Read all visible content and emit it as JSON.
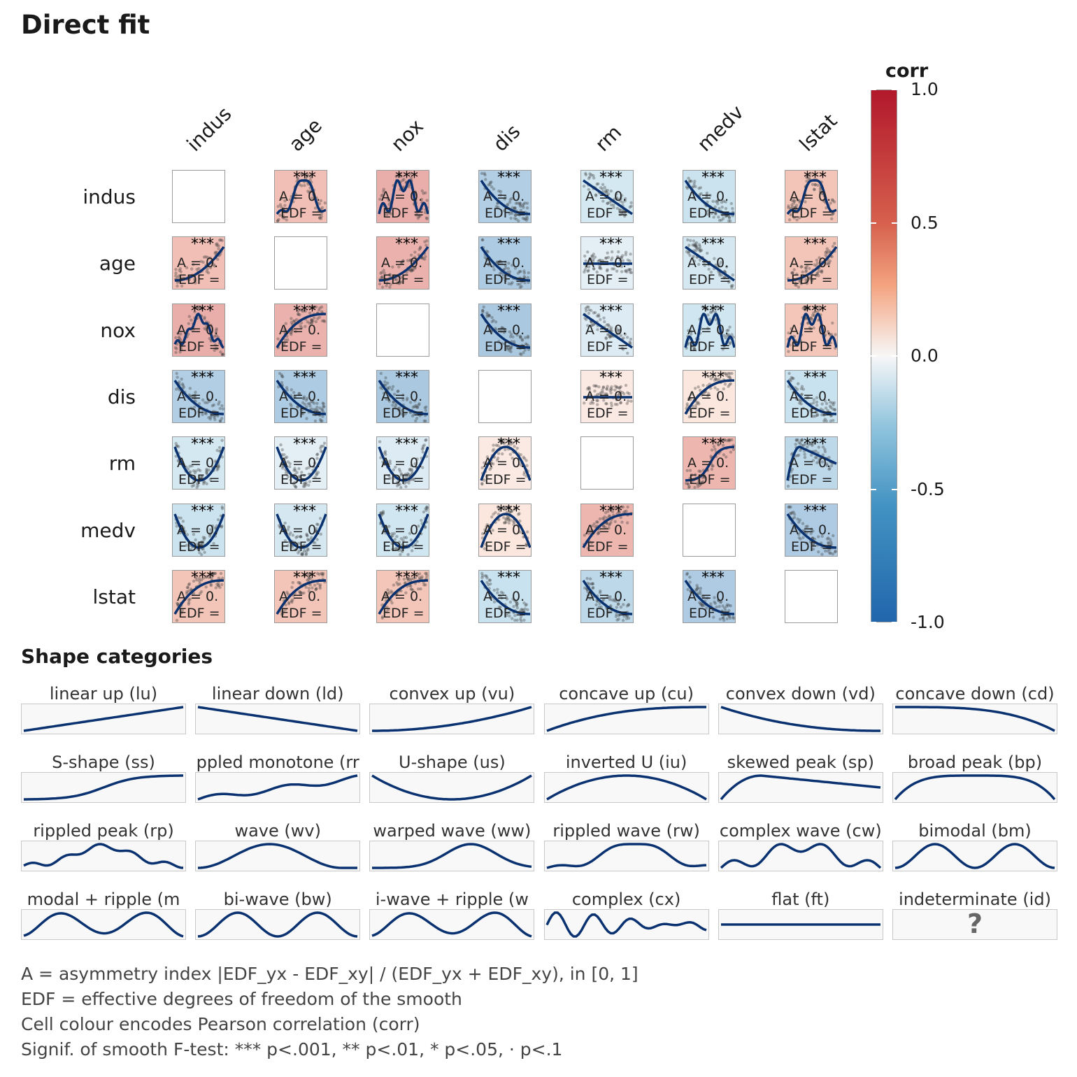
{
  "title": "Direct fit",
  "chart_data": {
    "type": "heatmap",
    "variables": [
      "indus",
      "age",
      "nox",
      "dis",
      "rm",
      "medv",
      "lstat"
    ],
    "legend": {
      "title": "corr",
      "ticks": [
        "1.0",
        "0.5",
        "0.0",
        "-0.5",
        "-1.0"
      ],
      "range": [
        -1,
        1
      ],
      "colors": {
        "low": "#2166ac",
        "mid": "#f7f7f7",
        "high": "#b2182b"
      },
      "placement": "right"
    },
    "cell_text": {
      "stars": "***",
      "a": "A = 0.",
      "edf": "EDF ="
    },
    "corr": [
      [
        null,
        0.64,
        0.76,
        -0.71,
        -0.39,
        -0.48,
        0.6
      ],
      [
        0.64,
        null,
        0.73,
        -0.75,
        -0.24,
        -0.38,
        0.6
      ],
      [
        0.76,
        0.73,
        null,
        -0.77,
        -0.3,
        -0.43,
        0.59
      ],
      [
        -0.71,
        -0.75,
        -0.77,
        null,
        0.21,
        0.25,
        -0.5
      ],
      [
        -0.39,
        -0.24,
        -0.3,
        0.21,
        null,
        0.7,
        -0.61
      ],
      [
        -0.48,
        -0.38,
        -0.43,
        0.25,
        0.7,
        null,
        -0.74
      ],
      [
        0.6,
        0.6,
        0.59,
        -0.5,
        -0.61,
        -0.74,
        null
      ]
    ],
    "shapes": [
      [
        null,
        "rw",
        "cw",
        "vd",
        "ld",
        "vd",
        "rw"
      ],
      [
        "vu",
        null,
        "vu",
        "vd",
        "ft",
        "ld",
        "vu"
      ],
      [
        "rp",
        "cu",
        null,
        "vd",
        "ld",
        "cw",
        "cw"
      ],
      [
        "vd",
        "vd",
        "vd",
        null,
        "ft",
        "cu",
        "vd"
      ],
      [
        "us",
        "us",
        "us",
        "iu",
        null,
        "ss",
        "sp"
      ],
      [
        "us",
        "us",
        "us",
        "iu",
        "cu",
        null,
        "vd"
      ],
      [
        "cu",
        "cu",
        "cu",
        "vd",
        "vd",
        "vd",
        null
      ]
    ]
  },
  "shape_section": {
    "title": "Shape categories",
    "items": [
      {
        "label": "linear up (lu)",
        "code": "lu"
      },
      {
        "label": "linear down (ld)",
        "code": "ld"
      },
      {
        "label": "convex up (vu)",
        "code": "vu"
      },
      {
        "label": "concave up (cu)",
        "code": "cu"
      },
      {
        "label": "convex down (vd)",
        "code": "vd"
      },
      {
        "label": "concave down (cd)",
        "code": "cd"
      },
      {
        "label": "S-shape (ss)",
        "code": "ss"
      },
      {
        "label": "ppled monotone (rr",
        "code": "rm"
      },
      {
        "label": "U-shape (us)",
        "code": "us"
      },
      {
        "label": "inverted U (iu)",
        "code": "iu"
      },
      {
        "label": "skewed peak (sp)",
        "code": "sp"
      },
      {
        "label": "broad peak (bp)",
        "code": "bp"
      },
      {
        "label": "rippled peak (rp)",
        "code": "rp"
      },
      {
        "label": "wave (wv)",
        "code": "wv"
      },
      {
        "label": "warped wave (ww)",
        "code": "ww"
      },
      {
        "label": "rippled wave (rw)",
        "code": "rw"
      },
      {
        "label": "complex wave (cw)",
        "code": "cw"
      },
      {
        "label": "bimodal (bm)",
        "code": "bm"
      },
      {
        "label": "modal + ripple (m",
        "code": "mr"
      },
      {
        "label": "bi-wave (bw)",
        "code": "bw"
      },
      {
        "label": "i-wave + ripple (w",
        "code": "wr"
      },
      {
        "label": "complex (cx)",
        "code": "cx"
      },
      {
        "label": "flat (ft)",
        "code": "ft"
      },
      {
        "label": "indeterminate (id)",
        "code": "id",
        "symbol": "?"
      }
    ]
  },
  "notes": [
    "A = asymmetry index |EDF_yx - EDF_xy| / (EDF_yx + EDF_xy), in [0, 1]",
    "EDF = effective degrees of freedom of the smooth",
    "Cell colour encodes Pearson correlation (corr)",
    "Signif. of smooth F-test: *** p<.001, ** p<.01, * p<.05, · p<.1"
  ],
  "line_color": "#0b3270"
}
